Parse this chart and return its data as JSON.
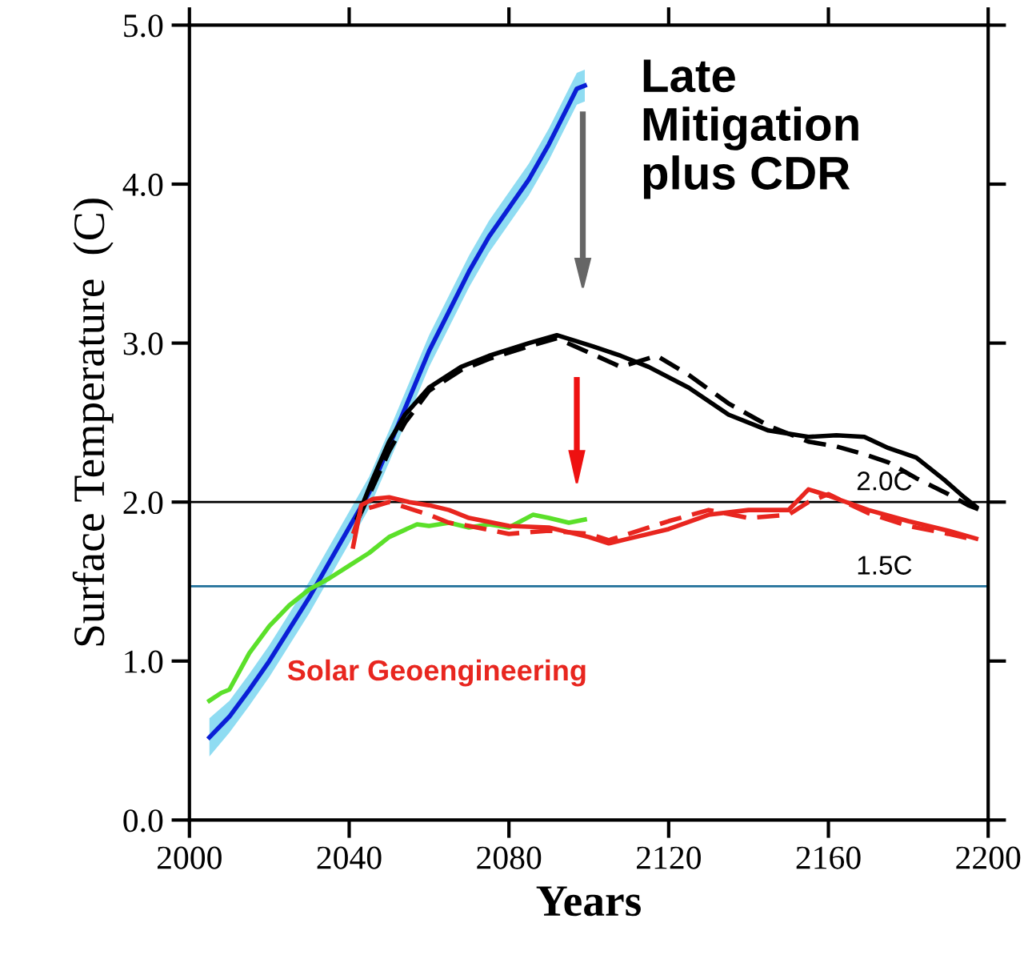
{
  "chart_data": {
    "type": "line",
    "xlabel": "Years",
    "ylabel": "Surface Temperature  (C)",
    "xlim": [
      2000,
      2200
    ],
    "xticks": [
      2000,
      2040,
      2080,
      2120,
      2160,
      2200
    ],
    "ylim": [
      0,
      5
    ],
    "yticks": [
      {
        "value": 0,
        "label": "0.0"
      },
      {
        "value": 1,
        "label": "1.0"
      },
      {
        "value": 2,
        "label": "2.0"
      },
      {
        "value": 3,
        "label": "3.0"
      },
      {
        "value": 4,
        "label": "4.0"
      },
      {
        "value": 5,
        "label": "5.0"
      }
    ],
    "grid": false,
    "legend": false,
    "series": [
      {
        "color": "#0a1fd6",
        "line_style": "solid",
        "x": [
          2005,
          2010,
          2015,
          2020,
          2025,
          2030,
          2035,
          2040,
          2045,
          2050,
          2055,
          2060,
          2065,
          2070,
          2075,
          2080,
          2085,
          2090,
          2095,
          2097,
          2099
        ],
        "values": [
          0.52,
          0.65,
          0.82,
          1.0,
          1.2,
          1.4,
          1.62,
          1.84,
          2.06,
          2.35,
          2.65,
          2.95,
          3.2,
          3.45,
          3.67,
          3.85,
          4.03,
          4.25,
          4.5,
          4.6,
          4.62
        ],
        "lower": [
          0.4,
          0.55,
          0.72,
          0.9,
          1.1,
          1.3,
          1.52,
          1.74,
          1.96,
          2.25,
          2.55,
          2.85,
          3.1,
          3.35,
          3.57,
          3.75,
          3.93,
          4.15,
          4.4,
          4.5,
          4.52
        ],
        "upper": [
          0.64,
          0.75,
          0.92,
          1.1,
          1.3,
          1.5,
          1.72,
          1.94,
          2.16,
          2.45,
          2.75,
          3.05,
          3.3,
          3.55,
          3.77,
          3.95,
          4.13,
          4.35,
          4.6,
          4.7,
          4.72
        ]
      },
      {
        "color": "#5be02a",
        "line_style": "solid",
        "x": [
          2005,
          2008,
          2010,
          2015,
          2020,
          2025,
          2030,
          2035,
          2040,
          2045,
          2050,
          2057,
          2060,
          2065,
          2070,
          2075,
          2080,
          2086,
          2090,
          2095,
          2099
        ],
        "values": [
          0.75,
          0.8,
          0.82,
          1.05,
          1.22,
          1.35,
          1.45,
          1.52,
          1.6,
          1.68,
          1.78,
          1.86,
          1.85,
          1.87,
          1.84,
          1.86,
          1.84,
          1.92,
          1.9,
          1.87,
          1.89
        ]
      },
      {
        "color": "#000000",
        "line_style": "solid",
        "x": [
          2042,
          2046,
          2050,
          2054,
          2060,
          2068,
          2075,
          2085,
          2092,
          2101,
          2108,
          2115,
          2125,
          2135,
          2145,
          2155,
          2162,
          2169,
          2175,
          2182,
          2189,
          2194,
          2197
        ],
        "values": [
          1.9,
          2.15,
          2.38,
          2.55,
          2.72,
          2.85,
          2.92,
          3.0,
          3.05,
          2.98,
          2.92,
          2.85,
          2.72,
          2.55,
          2.45,
          2.41,
          2.42,
          2.41,
          2.34,
          2.28,
          2.14,
          2.03,
          1.97
        ]
      },
      {
        "color": "#000000",
        "line_style": "dashed",
        "x": [
          2042,
          2046,
          2050,
          2054,
          2060,
          2068,
          2075,
          2085,
          2092,
          2101,
          2108,
          2117,
          2125,
          2135,
          2145,
          2155,
          2162,
          2169,
          2175,
          2182,
          2190,
          2195,
          2198
        ],
        "values": [
          1.88,
          2.1,
          2.32,
          2.5,
          2.7,
          2.83,
          2.9,
          2.98,
          3.03,
          2.93,
          2.85,
          2.92,
          2.8,
          2.62,
          2.48,
          2.38,
          2.35,
          2.3,
          2.25,
          2.15,
          2.05,
          1.98,
          1.95
        ]
      },
      {
        "color": "#e8261f",
        "line_style": "solid",
        "x": [
          2041,
          2043,
          2046,
          2050,
          2055,
          2060,
          2065,
          2070,
          2080,
          2090,
          2100,
          2105,
          2110,
          2120,
          2130,
          2140,
          2150,
          2155,
          2160,
          2170,
          2180,
          2190,
          2197
        ],
        "values": [
          1.72,
          1.98,
          2.02,
          2.03,
          2.0,
          1.98,
          1.95,
          1.9,
          1.85,
          1.84,
          1.78,
          1.74,
          1.77,
          1.83,
          1.92,
          1.95,
          1.95,
          2.08,
          2.04,
          1.95,
          1.88,
          1.82,
          1.77
        ]
      },
      {
        "color": "#e8261f",
        "line_style": "dashed",
        "x": [
          2041,
          2043,
          2046,
          2050,
          2055,
          2060,
          2065,
          2070,
          2080,
          2090,
          2100,
          2105,
          2110,
          2120,
          2130,
          2140,
          2150,
          2155,
          2160,
          2170,
          2180,
          2190,
          2197
        ],
        "values": [
          1.8,
          1.95,
          1.97,
          2.0,
          1.96,
          1.92,
          1.87,
          1.85,
          1.8,
          1.82,
          1.8,
          1.76,
          1.8,
          1.88,
          1.95,
          1.9,
          1.92,
          2.0,
          2.05,
          1.93,
          1.85,
          1.8,
          1.76
        ]
      }
    ],
    "ref_lines": [
      {
        "axis": "y",
        "value": 2.0,
        "label": "2.0C",
        "color": "#000000"
      },
      {
        "axis": "y",
        "value": 1.47,
        "label": "1.5C",
        "color": "#1f6f99"
      }
    ],
    "annotations": [
      "Late\nMitigation\nplus CDR",
      "Solar Geoengineering"
    ]
  }
}
